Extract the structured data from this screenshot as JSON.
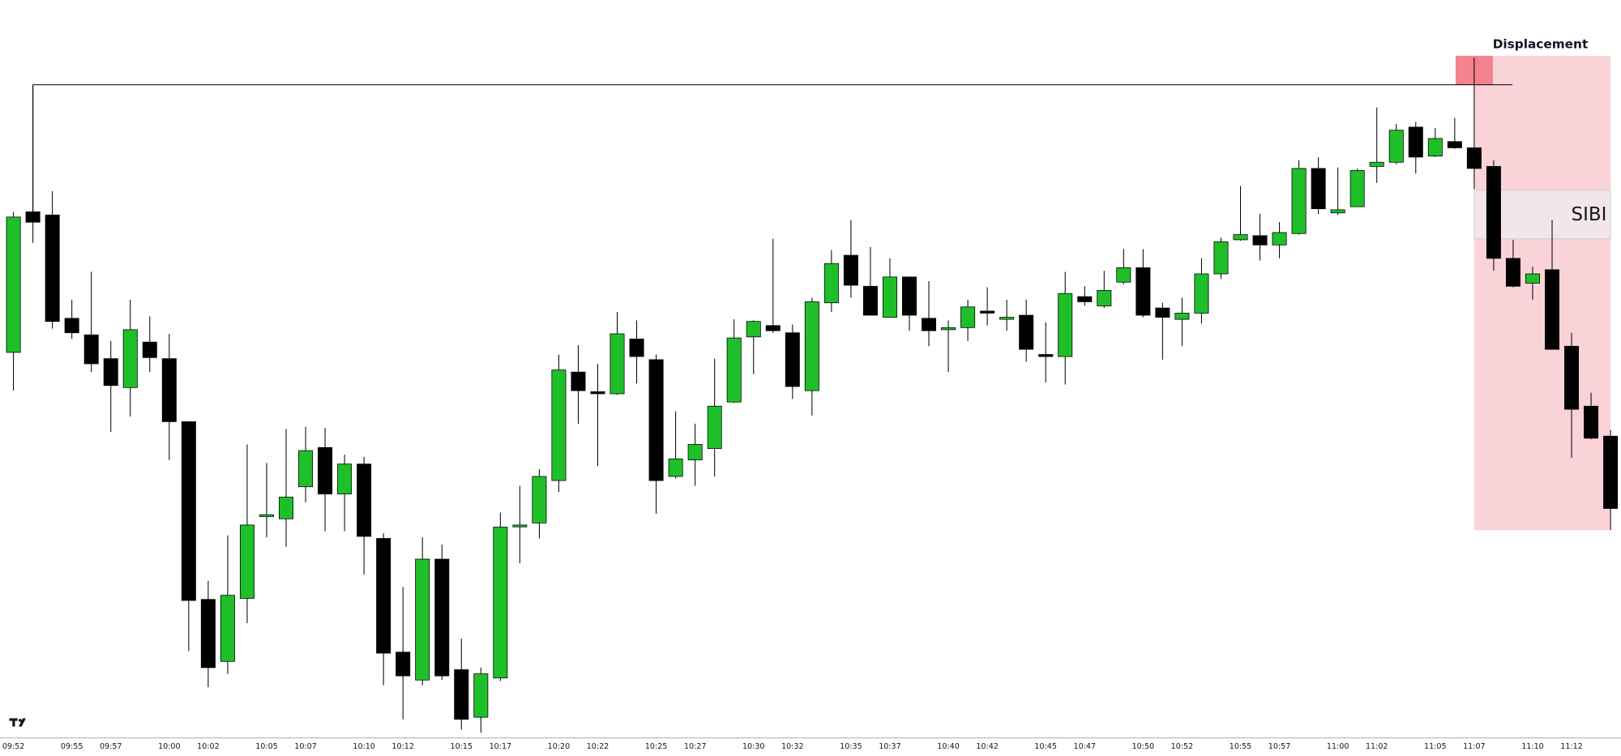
{
  "chart_data": {
    "type": "candlestick",
    "x": [
      "09:52",
      null,
      null,
      "09:55",
      null,
      "09:57",
      null,
      null,
      "10:00",
      null,
      "10:02",
      null,
      null,
      "10:05",
      null,
      "10:07",
      null,
      null,
      "10:10",
      null,
      "10:12",
      null,
      null,
      "10:15",
      null,
      "10:17",
      null,
      null,
      "10:20",
      null,
      "10:22",
      null,
      null,
      "10:25",
      null,
      "10:27",
      null,
      null,
      "10:30",
      null,
      "10:32",
      null,
      null,
      "10:35",
      null,
      "10:37",
      null,
      null,
      "10:40",
      null,
      "10:42",
      null,
      null,
      "10:45",
      null,
      "10:47",
      null,
      null,
      "10:50",
      null,
      "10:52",
      null,
      null,
      "10:55",
      null,
      "10:57",
      null,
      null,
      "11:00",
      null,
      "11:02",
      null,
      null,
      "11:05",
      null,
      "11:07",
      null,
      null,
      "11:10",
      null,
      "11:12",
      null,
      null
    ],
    "open": [
      379,
      515,
      512,
      412,
      396,
      373,
      345,
      389,
      373,
      312,
      140,
      80,
      141,
      221,
      218,
      249,
      287,
      242,
      271,
      199,
      89,
      62,
      179,
      72,
      26,
      64,
      211,
      214,
      255,
      360,
      341,
      339,
      392,
      372,
      259,
      275,
      286,
      331,
      394,
      405,
      398,
      342,
      427,
      473,
      443,
      413,
      452,
      412,
      401,
      403,
      419,
      411,
      415,
      377,
      375,
      433,
      424,
      447,
      461,
      422,
      411,
      417,
      455,
      488,
      492,
      483,
      494,
      557,
      514,
      520,
      559,
      563,
      597,
      569,
      583,
      577,
      559,
      470,
      446,
      459,
      385,
      327,
      298
    ],
    "high": [
      515,
      638,
      535,
      430,
      457,
      390,
      430,
      414,
      397,
      312,
      158,
      202,
      290,
      272,
      305,
      307,
      306,
      280,
      278,
      204,
      152,
      200,
      193,
      102,
      74,
      224,
      250,
      266,
      377,
      386,
      368,
      418,
      410,
      377,
      322,
      310,
      373,
      411,
      410,
      489,
      406,
      432,
      478,
      507,
      481,
      470,
      452,
      448,
      410,
      430,
      442,
      430,
      430,
      408,
      457,
      443,
      458,
      479,
      479,
      427,
      432,
      470,
      490,
      540,
      513,
      505,
      565,
      568,
      558,
      557,
      616,
      600,
      602,
      596,
      606,
      664,
      565,
      488,
      462,
      507,
      398,
      340,
      304
    ],
    "low": [
      342,
      485,
      402,
      392,
      360,
      302,
      317,
      360,
      275,
      90,
      55,
      68,
      117,
      200,
      191,
      234,
      206,
      206,
      164,
      57,
      24,
      57,
      62,
      14,
      11,
      61,
      175,
      199,
      244,
      310,
      269,
      338,
      349,
      223,
      257,
      250,
      259,
      330,
      358,
      398,
      334,
      318,
      418,
      432,
      415,
      413,
      400,
      385,
      360,
      390,
      405,
      400,
      370,
      350,
      348,
      424,
      422,
      445,
      413,
      372,
      385,
      407,
      450,
      487,
      468,
      470,
      493,
      513,
      512,
      520,
      543,
      561,
      552,
      568,
      576,
      537,
      458,
      442,
      430,
      382,
      277,
      295,
      207
    ],
    "close": [
      510,
      505,
      409,
      398,
      368,
      347,
      401,
      374,
      312,
      139,
      74,
      144,
      212,
      222,
      239,
      284,
      242,
      271,
      201,
      88,
      66,
      179,
      66,
      24,
      68,
      210,
      212,
      259,
      362,
      342,
      339,
      397,
      375,
      255,
      276,
      290,
      327,
      393,
      409,
      400,
      346,
      428,
      465,
      444,
      415,
      452,
      415,
      400,
      403,
      423,
      417,
      413,
      382,
      375,
      436,
      428,
      439,
      461,
      415,
      413,
      417,
      455,
      486,
      493,
      483,
      495,
      557,
      518,
      517,
      555,
      563,
      594,
      568,
      586,
      577,
      557,
      470,
      443,
      455,
      382,
      324,
      296,
      228
    ],
    "ylim": [
      0,
      720
    ],
    "colors": {
      "up": "#1fbf29",
      "down": "#000000",
      "wick": "#000000",
      "level": "#000000"
    },
    "annotations": {
      "zone_label": "Displacement",
      "box_label": "SIBI"
    }
  }
}
